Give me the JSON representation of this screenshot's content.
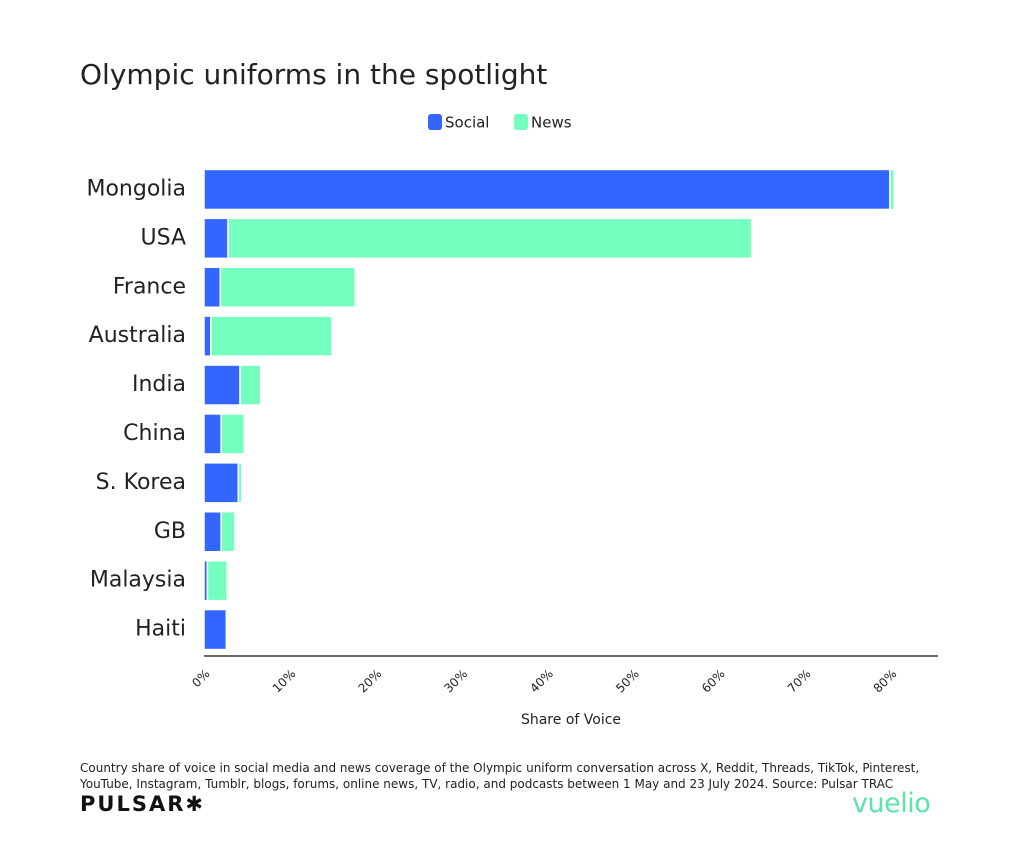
{
  "chart_data": {
    "type": "stacked-barh",
    "title": "Olympic uniforms in the spotlight",
    "categories": [
      "Mongolia",
      "USA",
      "France",
      "Australia",
      "India",
      "China",
      "S. Korea",
      "GB",
      "Malaysia",
      "Haiti"
    ],
    "series": [
      {
        "name": "Social",
        "color": "#3366ff",
        "values": [
          79.9,
          2.8,
          1.9,
          0.8,
          4.2,
          2.0,
          4.0,
          2.0,
          0.4,
          2.6
        ]
      },
      {
        "name": "News",
        "color": "#74ffbf",
        "values": [
          0.5,
          61.0,
          15.7,
          14.1,
          2.4,
          2.7,
          0.4,
          1.6,
          2.3,
          0
        ]
      }
    ],
    "xlim": [
      0,
      85.5
    ],
    "xticks": [
      {
        "value": 0,
        "label": "0%"
      },
      {
        "value": 10,
        "label": "10%"
      },
      {
        "value": 20,
        "label": "20%"
      },
      {
        "value": 30,
        "label": "30%"
      },
      {
        "value": 40,
        "label": "40%"
      },
      {
        "value": 50,
        "label": "50%"
      },
      {
        "value": 60,
        "label": "60%"
      },
      {
        "value": 70,
        "label": "70%"
      },
      {
        "value": 80,
        "label": "80%"
      }
    ],
    "x_label": "Share of Voice",
    "legend": "top",
    "note": "Country share of voice in social media and news coverage of the Olympic uniform conversation across X, Reddit, Threads, TikTok, Pinterest, YouTube, Instagram, Tumblr, blogs, forums, online news, TV, radio, and podcasts between 1 May and 23 July 2024. Source: Pulsar TRAC"
  },
  "brand": {
    "left": "PULSAR✱",
    "right": "vuelio"
  }
}
